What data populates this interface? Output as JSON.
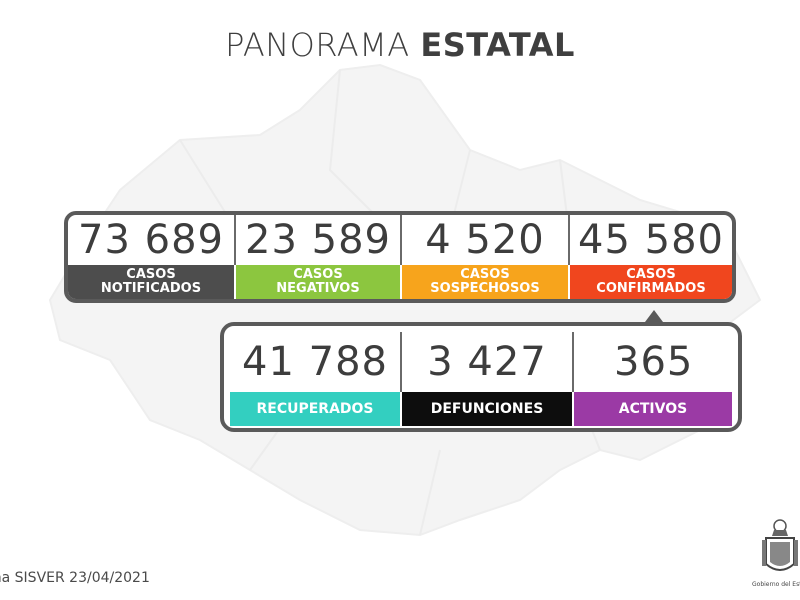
{
  "header": {
    "title_light": "PANORAMA",
    "title_bold": "ESTATAL"
  },
  "colors": {
    "notificados": "#4d4d4d",
    "negativos": "#8cc63f",
    "sospechosos": "#f7a41c",
    "confirmados": "#f0461e",
    "recuperados": "#33cfc0",
    "defunciones": "#0d0d0d",
    "activos": "#9b3aa5",
    "frame": "#5a5a5a",
    "map": "#f4f4f4"
  },
  "summary": [
    {
      "id": "notificados",
      "value": "73 689",
      "label_line1": "CASOS",
      "label_line2": "NOTIFICADOS"
    },
    {
      "id": "negativos",
      "value": "23 589",
      "label_line1": "CASOS",
      "label_line2": "NEGATIVOS"
    },
    {
      "id": "sospechosos",
      "value": "4 520",
      "label_line1": "CASOS",
      "label_line2": "SOSPECHOSOS"
    },
    {
      "id": "confirmados",
      "value": "45 580",
      "label_line1": "CASOS",
      "label_line2": "CONFIRMADOS"
    }
  ],
  "breakdown": [
    {
      "id": "recuperados",
      "value": "41 788",
      "label": "RECUPERADOS"
    },
    {
      "id": "defunciones",
      "value": "3 427",
      "label": "DEFUNCIONES"
    },
    {
      "id": "activos",
      "value": "365",
      "label": "ACTIVOS"
    }
  ],
  "footer": {
    "source": "ma SISVER 23/04/2021",
    "emblem_caption": "Gobierno del Esta",
    "emblem_icon": "state-coat-of-arms-icon"
  }
}
